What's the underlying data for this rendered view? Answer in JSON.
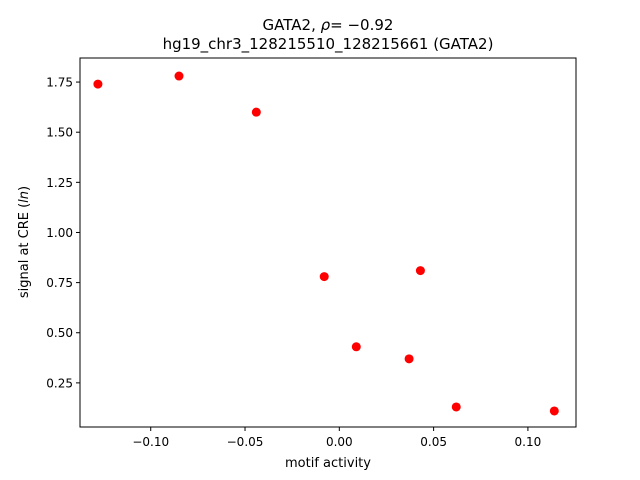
{
  "chart_data": {
    "type": "scatter",
    "title_line1_prefix": "GATA2, ",
    "title_line1_rho": "ρ",
    "title_line1_suffix": "= −0.92",
    "title_line2": "hg19_chr3_128215510_128215661 (GATA2)",
    "xlabel": "motif activity",
    "ylabel_prefix": "signal at CRE (",
    "ylabel_ln": "ln",
    "ylabel_suffix": ")",
    "xlim": [
      -0.1375,
      0.1255
    ],
    "ylim": [
      0.03,
      1.87
    ],
    "xticks": [
      {
        "value": -0.1,
        "label": "−0.10"
      },
      {
        "value": -0.05,
        "label": "−0.05"
      },
      {
        "value": 0.0,
        "label": "0.00"
      },
      {
        "value": 0.05,
        "label": "0.05"
      },
      {
        "value": 0.1,
        "label": "0.10"
      }
    ],
    "yticks": [
      {
        "value": 0.25,
        "label": "0.25"
      },
      {
        "value": 0.5,
        "label": "0.50"
      },
      {
        "value": 0.75,
        "label": "0.75"
      },
      {
        "value": 1.0,
        "label": "1.00"
      },
      {
        "value": 1.25,
        "label": "1.25"
      },
      {
        "value": 1.5,
        "label": "1.50"
      },
      {
        "value": 1.75,
        "label": "1.75"
      }
    ],
    "points": [
      {
        "x": -0.128,
        "y": 1.74
      },
      {
        "x": -0.085,
        "y": 1.78
      },
      {
        "x": -0.044,
        "y": 1.6
      },
      {
        "x": -0.008,
        "y": 0.78
      },
      {
        "x": 0.009,
        "y": 0.43
      },
      {
        "x": 0.037,
        "y": 0.37
      },
      {
        "x": 0.043,
        "y": 0.81
      },
      {
        "x": 0.062,
        "y": 0.13
      },
      {
        "x": 0.114,
        "y": 0.11
      }
    ],
    "marker_color": "#ff0000",
    "grid": false,
    "legend": "none"
  }
}
